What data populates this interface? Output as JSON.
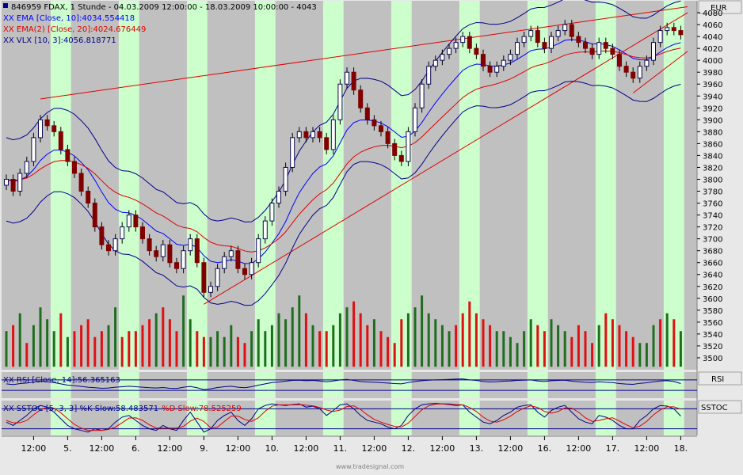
{
  "header": {
    "symbol_line": "846959  FDAX, 1 Stunde - 04.03.2009 12:00:00 - 18.03.2009 10:00:00 - 4043",
    "ema10": "XX EMA [Close, 10]:4034.554418",
    "ema20": "XX EMA(2) [Close, 20]:4024.676449",
    "vlx": "XX VLX [10, 3]:4056.818771"
  },
  "currency": "EUR",
  "rsi_label": "XX RSI [Close, 14]:56.365163",
  "rsi_panel_title": "RSI",
  "sstoc_label_prefix": "XX SSTOC [5, 3, 3] %K Slow:58.483571",
  "sstoc_label_d": "%D Slow:78.525259",
  "sstoc_panel_title": "SSTOC",
  "watermark": "www.tradesignal.com",
  "colors": {
    "up": "#1e6e1e",
    "down": "#e01010",
    "ema10": "#0000ff",
    "ema20": "#e00000",
    "vlx": "#00008b",
    "trend": "#e00000",
    "highlight": "#ccffcc",
    "panel": "#c0c0c0"
  },
  "chart_data": {
    "type": "candlestick",
    "y_ticks": [
      3500,
      3520,
      3540,
      3560,
      3580,
      3600,
      3620,
      3640,
      3660,
      3680,
      3700,
      3720,
      3740,
      3760,
      3780,
      3800,
      3820,
      3840,
      3860,
      3880,
      3900,
      3920,
      3940,
      3960,
      3980,
      4000,
      4020,
      4040,
      4060,
      4080
    ],
    "ylim": [
      3480,
      4100
    ],
    "x_labels": [
      {
        "label": "12:00",
        "i": 4
      },
      {
        "label": "5.",
        "i": 9
      },
      {
        "label": "12:00",
        "i": 14
      },
      {
        "label": "6.",
        "i": 19
      },
      {
        "label": "12:00",
        "i": 24
      },
      {
        "label": "9.",
        "i": 29
      },
      {
        "label": "12:00",
        "i": 34
      },
      {
        "label": "10.",
        "i": 39
      },
      {
        "label": "12:00",
        "i": 44
      },
      {
        "label": "11.",
        "i": 49
      },
      {
        "label": "12:00",
        "i": 54
      },
      {
        "label": "12.",
        "i": 59
      },
      {
        "label": "12:00",
        "i": 64
      },
      {
        "label": "13.",
        "i": 69
      },
      {
        "label": "12:00",
        "i": 74
      },
      {
        "label": "16.",
        "i": 79
      },
      {
        "label": "12:00",
        "i": 84
      },
      {
        "label": "17.",
        "i": 89
      },
      {
        "label": "12:00",
        "i": 94
      },
      {
        "label": "18.",
        "i": 99
      }
    ],
    "highlight_groups": [
      [
        7,
        9
      ],
      [
        17,
        19
      ],
      [
        27,
        29
      ],
      [
        37,
        39
      ],
      [
        47,
        49
      ],
      [
        57,
        59
      ],
      [
        67,
        69
      ],
      [
        77,
        79
      ],
      [
        87,
        89
      ],
      [
        97,
        99
      ]
    ],
    "close": [
      3800,
      3780,
      3810,
      3830,
      3870,
      3900,
      3890,
      3880,
      3850,
      3830,
      3810,
      3780,
      3760,
      3720,
      3690,
      3680,
      3700,
      3720,
      3740,
      3720,
      3700,
      3680,
      3670,
      3690,
      3660,
      3650,
      3680,
      3700,
      3660,
      3610,
      3620,
      3650,
      3670,
      3680,
      3650,
      3640,
      3660,
      3700,
      3730,
      3760,
      3780,
      3820,
      3870,
      3880,
      3870,
      3880,
      3870,
      3850,
      3900,
      3960,
      3980,
      3950,
      3920,
      3900,
      3890,
      3880,
      3860,
      3840,
      3830,
      3880,
      3920,
      3960,
      3990,
      4000,
      4010,
      4020,
      4030,
      4040,
      4020,
      4010,
      3990,
      3980,
      3990,
      4000,
      4010,
      4030,
      4040,
      4050,
      4030,
      4020,
      4040,
      4050,
      4060,
      4040,
      4030,
      4020,
      4010,
      4030,
      4020,
      4010,
      3990,
      3980,
      3970,
      3990,
      4000,
      4030,
      4050,
      4055,
      4050,
      4043
    ],
    "volume": [
      30,
      35,
      45,
      20,
      35,
      50,
      40,
      30,
      45,
      25,
      30,
      35,
      40,
      25,
      30,
      35,
      50,
      25,
      30,
      30,
      35,
      40,
      45,
      50,
      40,
      30,
      60,
      40,
      30,
      25,
      25,
      30,
      25,
      35,
      25,
      20,
      30,
      40,
      30,
      35,
      45,
      40,
      50,
      60,
      45,
      35,
      30,
      30,
      35,
      45,
      50,
      55,
      45,
      35,
      40,
      30,
      25,
      20,
      40,
      45,
      50,
      60,
      45,
      40,
      35,
      30,
      35,
      45,
      55,
      45,
      40,
      35,
      30,
      30,
      25,
      20,
      30,
      40,
      35,
      30,
      40,
      35,
      30,
      25,
      35,
      30,
      20,
      35,
      45,
      40,
      35,
      30,
      25,
      20,
      20,
      35,
      40,
      45,
      40,
      30
    ],
    "volume_colors_down_indices": [
      1,
      3,
      8,
      10,
      11,
      12,
      13,
      14,
      17,
      18,
      19,
      20,
      21,
      23,
      24,
      25,
      28,
      29,
      34,
      35,
      44,
      46,
      47,
      51,
      52,
      53,
      55,
      56,
      57,
      58,
      66,
      67,
      68,
      69,
      70,
      71,
      78,
      79,
      83,
      84,
      85,
      86,
      88,
      89,
      90,
      91,
      92,
      96,
      98
    ],
    "rsi": [
      55,
      52,
      56,
      58,
      62,
      65,
      63,
      60,
      55,
      50,
      48,
      45,
      42,
      40,
      38,
      39,
      42,
      44,
      46,
      44,
      42,
      40,
      39,
      41,
      38,
      37,
      42,
      45,
      40,
      33,
      36,
      41,
      44,
      46,
      42,
      40,
      44,
      50,
      55,
      60,
      62,
      65,
      68,
      69,
      67,
      68,
      66,
      63,
      66,
      70,
      72,
      68,
      64,
      62,
      61,
      60,
      58,
      56,
      55,
      60,
      64,
      67,
      69,
      70,
      71,
      72,
      73,
      74,
      70,
      68,
      64,
      62,
      63,
      65,
      66,
      68,
      69,
      70,
      66,
      64,
      67,
      68,
      69,
      65,
      63,
      61,
      60,
      63,
      61,
      60,
      56,
      54,
      53,
      57,
      59,
      63,
      66,
      67,
      64,
      56
    ],
    "stoch_k": [
      40,
      30,
      45,
      60,
      80,
      90,
      85,
      70,
      50,
      30,
      20,
      15,
      10,
      20,
      15,
      20,
      40,
      55,
      60,
      45,
      30,
      20,
      15,
      30,
      20,
      15,
      45,
      70,
      40,
      10,
      20,
      45,
      60,
      70,
      45,
      30,
      50,
      80,
      90,
      95,
      92,
      90,
      93,
      95,
      85,
      88,
      80,
      60,
      75,
      92,
      95,
      80,
      60,
      45,
      40,
      35,
      25,
      20,
      30,
      60,
      80,
      92,
      95,
      96,
      95,
      93,
      90,
      92,
      70,
      55,
      40,
      35,
      45,
      60,
      70,
      85,
      90,
      92,
      70,
      55,
      75,
      85,
      90,
      70,
      50,
      40,
      35,
      60,
      55,
      45,
      30,
      20,
      20,
      45,
      60,
      80,
      90,
      88,
      80,
      58
    ],
    "stoch_d": [
      45,
      38,
      38,
      45,
      62,
      77,
      85,
      82,
      68,
      50,
      33,
      22,
      15,
      15,
      15,
      18,
      25,
      38,
      52,
      53,
      45,
      32,
      22,
      22,
      22,
      22,
      27,
      43,
      52,
      42,
      23,
      25,
      42,
      58,
      58,
      48,
      42,
      53,
      73,
      88,
      92,
      92,
      92,
      93,
      91,
      89,
      84,
      76,
      72,
      76,
      87,
      89,
      78,
      62,
      48,
      40,
      33,
      27,
      25,
      37,
      57,
      77,
      89,
      94,
      95,
      95,
      93,
      92,
      84,
      72,
      55,
      43,
      40,
      47,
      58,
      72,
      82,
      89,
      84,
      72,
      67,
      72,
      83,
      82,
      70,
      53,
      42,
      45,
      50,
      53,
      43,
      32,
      23,
      28,
      42,
      62,
      77,
      86,
      86,
      79
    ]
  }
}
